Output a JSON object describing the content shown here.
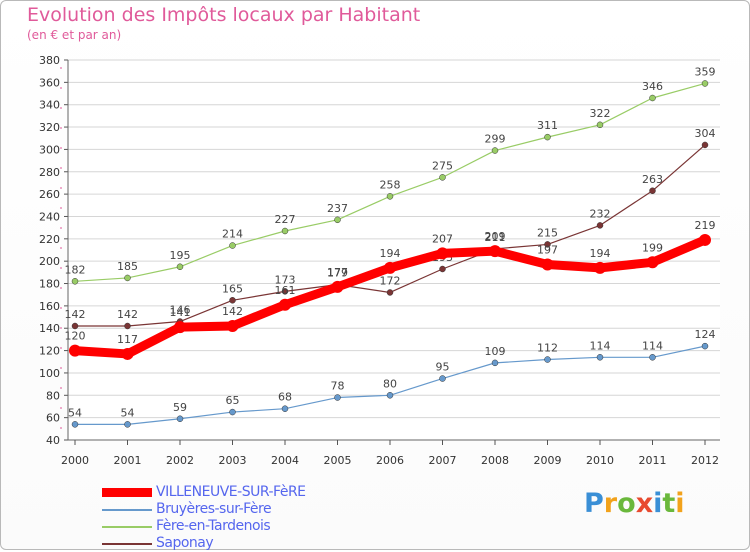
{
  "chart_data": {
    "type": "line",
    "title": "Evolution des Impôts locaux par Habitant",
    "subtitle": "(en € et par an)",
    "xlabel": "",
    "ylabel": "",
    "x": [
      "2000",
      "2001",
      "2002",
      "2003",
      "2004",
      "2005",
      "2006",
      "2007",
      "2008",
      "2009",
      "2010",
      "2011",
      "2012"
    ],
    "ylim": [
      40,
      380
    ],
    "yticks": [
      40,
      60,
      80,
      100,
      120,
      140,
      160,
      180,
      200,
      220,
      240,
      260,
      280,
      300,
      320,
      340,
      360,
      380
    ],
    "grid": "horizontal",
    "series": [
      {
        "name": "VILLENEUVE-SUR-FèRE",
        "color": "#ff0000",
        "values": [
          120,
          117,
          141,
          142,
          161,
          177,
          194,
          207,
          209,
          197,
          194,
          199,
          219
        ]
      },
      {
        "name": "Bruyères-sur-Fère",
        "color": "#6699cc",
        "values": [
          54,
          54,
          59,
          65,
          68,
          78,
          80,
          95,
          109,
          112,
          114,
          114,
          124
        ]
      },
      {
        "name": "Fère-en-Tardenois",
        "color": "#99cc66",
        "values": [
          182,
          185,
          195,
          214,
          227,
          237,
          258,
          275,
          299,
          311,
          322,
          346,
          359
        ]
      },
      {
        "name": "Saponay",
        "color": "#7a3535",
        "values": [
          142,
          142,
          146,
          165,
          173,
          179,
          172,
          193,
          211,
          215,
          232,
          263,
          304
        ]
      }
    ]
  },
  "logo": {
    "text": "Proxiti",
    "letters": [
      "P",
      "r",
      "o",
      "x",
      "i",
      "t",
      "i"
    ]
  }
}
